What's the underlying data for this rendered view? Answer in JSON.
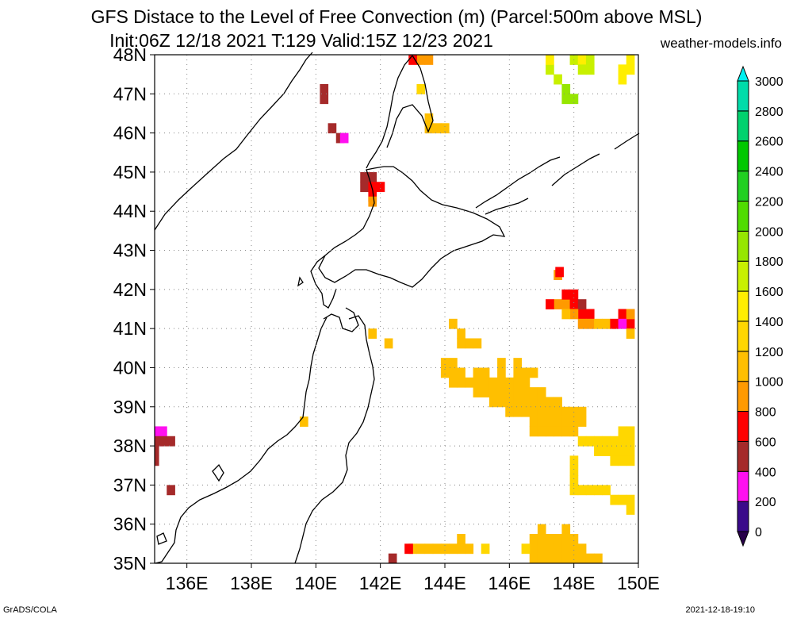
{
  "title_line1": "GFS Distace to the Level of Free Convection (m) (Parcel:500m above MSL)",
  "title_line2": "Init:06Z 12/18 2021 T:129 Valid:15Z 12/23 2021",
  "site": "weather-models.info",
  "footer_left": "GrADS/COLA",
  "footer_right": "2021-12-18-19:10",
  "map": {
    "lon_range": [
      135,
      150
    ],
    "lat_range": [
      35,
      48
    ],
    "lon_ticks": [
      {
        "value": 136,
        "label": "136E"
      },
      {
        "value": 138,
        "label": "138E"
      },
      {
        "value": 140,
        "label": "140E"
      },
      {
        "value": 142,
        "label": "142E"
      },
      {
        "value": 144,
        "label": "144E"
      },
      {
        "value": 146,
        "label": "146E"
      },
      {
        "value": 148,
        "label": "148E"
      },
      {
        "value": 150,
        "label": "150E"
      }
    ],
    "lat_ticks": [
      {
        "value": 35,
        "label": "35N"
      },
      {
        "value": 36,
        "label": "36N"
      },
      {
        "value": 37,
        "label": "37N"
      },
      {
        "value": 38,
        "label": "38N"
      },
      {
        "value": 39,
        "label": "39N"
      },
      {
        "value": 40,
        "label": "40N"
      },
      {
        "value": 41,
        "label": "41N"
      },
      {
        "value": 42,
        "label": "42N"
      },
      {
        "value": 43,
        "label": "43N"
      },
      {
        "value": 44,
        "label": "44N"
      },
      {
        "value": 45,
        "label": "45N"
      },
      {
        "value": 46,
        "label": "46N"
      },
      {
        "value": 47,
        "label": "47N"
      },
      {
        "value": 48,
        "label": "48N"
      }
    ],
    "grid": true
  },
  "colorbar": {
    "levels": [
      {
        "value": 0,
        "label": "0",
        "color": "#3a0a8a"
      },
      {
        "value": 200,
        "label": "200",
        "color": "#ff10f0"
      },
      {
        "value": 400,
        "label": "400",
        "color": "#a52a2a"
      },
      {
        "value": 600,
        "label": "600",
        "color": "#ff0000"
      },
      {
        "value": 800,
        "label": "800",
        "color": "#ff9a00"
      },
      {
        "value": 1000,
        "label": "1000",
        "color": "#ffbf00"
      },
      {
        "value": 1200,
        "label": "1200",
        "color": "#ffd700"
      },
      {
        "value": 1400,
        "label": "1400",
        "color": "#ffee00"
      },
      {
        "value": 1600,
        "label": "1600",
        "color": "#c8f000"
      },
      {
        "value": 1800,
        "label": "1800",
        "color": "#96e600"
      },
      {
        "value": 2000,
        "label": "2000",
        "color": "#50dc00"
      },
      {
        "value": 2200,
        "label": "2200",
        "color": "#22d022"
      },
      {
        "value": 2400,
        "label": "2400",
        "color": "#00c800"
      },
      {
        "value": 2600,
        "label": "2600",
        "color": "#00d26e"
      },
      {
        "value": 2800,
        "label": "2800",
        "color": "#00dcaa"
      },
      {
        "value": 3000,
        "label": "3000",
        "color": "#00e6d2"
      }
    ],
    "top_color": "#00f0f0",
    "bottom_color": "#28004a"
  },
  "cells": [
    {
      "lon": 143.25,
      "lat": 47.875,
      "c": "#ff9a00"
    },
    {
      "lon": 143.5,
      "lat": 47.875,
      "c": "#ff9a00"
    },
    {
      "lon": 143.0,
      "lat": 47.875,
      "c": "#ff0000"
    },
    {
      "lon": 143.25,
      "lat": 47.125,
      "c": "#ffd700"
    },
    {
      "lon": 143.5,
      "lat": 46.375,
      "c": "#ffbf00"
    },
    {
      "lon": 143.75,
      "lat": 46.125,
      "c": "#ffbf00"
    },
    {
      "lon": 144.0,
      "lat": 46.125,
      "c": "#ffbf00"
    },
    {
      "lon": 143.5,
      "lat": 46.125,
      "c": "#ffbf00"
    },
    {
      "lon": 147.25,
      "lat": 47.625,
      "c": "#c8f000"
    },
    {
      "lon": 147.5,
      "lat": 47.375,
      "c": "#c8f000"
    },
    {
      "lon": 147.75,
      "lat": 47.125,
      "c": "#96e600"
    },
    {
      "lon": 148.0,
      "lat": 46.875,
      "c": "#96e600"
    },
    {
      "lon": 147.75,
      "lat": 46.875,
      "c": "#96e600"
    },
    {
      "lon": 147.25,
      "lat": 47.875,
      "c": "#ffee00"
    },
    {
      "lon": 148.0,
      "lat": 47.875,
      "c": "#c8f000"
    },
    {
      "lon": 148.25,
      "lat": 47.875,
      "c": "#ffee00"
    },
    {
      "lon": 148.5,
      "lat": 47.875,
      "c": "#c8f000"
    },
    {
      "lon": 148.25,
      "lat": 47.625,
      "c": "#c8f000"
    },
    {
      "lon": 148.5,
      "lat": 47.625,
      "c": "#c8f000"
    },
    {
      "lon": 149.75,
      "lat": 47.875,
      "c": "#ffee00"
    },
    {
      "lon": 149.5,
      "lat": 47.625,
      "c": "#ffee00"
    },
    {
      "lon": 149.75,
      "lat": 47.625,
      "c": "#ffee00"
    },
    {
      "lon": 149.5,
      "lat": 47.375,
      "c": "#ffee00"
    },
    {
      "lon": 140.25,
      "lat": 47.125,
      "c": "#a52a2a"
    },
    {
      "lon": 140.25,
      "lat": 46.875,
      "c": "#a52a2a"
    },
    {
      "lon": 140.5,
      "lat": 46.125,
      "c": "#a52a2a"
    },
    {
      "lon": 140.75,
      "lat": 45.875,
      "c": "#a52a2a"
    },
    {
      "lon": 140.875,
      "lat": 45.875,
      "c": "#ff10f0"
    },
    {
      "lon": 141.5,
      "lat": 44.875,
      "c": "#a52a2a"
    },
    {
      "lon": 141.75,
      "lat": 44.875,
      "c": "#a52a2a"
    },
    {
      "lon": 141.5,
      "lat": 44.625,
      "c": "#a52a2a"
    },
    {
      "lon": 141.75,
      "lat": 44.625,
      "c": "#ff0000"
    },
    {
      "lon": 142.0,
      "lat": 44.625,
      "c": "#ff0000"
    },
    {
      "lon": 141.75,
      "lat": 44.375,
      "c": "#ff0000"
    },
    {
      "lon": 141.75,
      "lat": 44.25,
      "c": "#ff9a00"
    },
    {
      "lon": 147.5,
      "lat": 42.375,
      "c": "#ff9a00"
    },
    {
      "lon": 147.55,
      "lat": 42.45,
      "c": "#ff0000"
    },
    {
      "lon": 147.5,
      "lat": 41.625,
      "c": "#ff9a00"
    },
    {
      "lon": 147.75,
      "lat": 41.625,
      "c": "#ff9a00"
    },
    {
      "lon": 147.75,
      "lat": 41.875,
      "c": "#ff0000"
    },
    {
      "lon": 148.0,
      "lat": 41.875,
      "c": "#ff0000"
    },
    {
      "lon": 148.0,
      "lat": 41.625,
      "c": "#ff0000"
    },
    {
      "lon": 147.25,
      "lat": 41.625,
      "c": "#ff0000"
    },
    {
      "lon": 148.25,
      "lat": 41.375,
      "c": "#ff0000"
    },
    {
      "lon": 148.5,
      "lat": 41.375,
      "c": "#ff0000"
    },
    {
      "lon": 148.25,
      "lat": 41.625,
      "c": "#a52a2a"
    },
    {
      "lon": 148.0,
      "lat": 41.375,
      "c": "#ff9a00"
    },
    {
      "lon": 147.75,
      "lat": 41.375,
      "c": "#ffbf00"
    },
    {
      "lon": 148.25,
      "lat": 41.125,
      "c": "#ff9a00"
    },
    {
      "lon": 148.5,
      "lat": 41.125,
      "c": "#ff9a00"
    },
    {
      "lon": 148.75,
      "lat": 41.125,
      "c": "#ffbf00"
    },
    {
      "lon": 149.0,
      "lat": 41.125,
      "c": "#ffbf00"
    },
    {
      "lon": 149.25,
      "lat": 41.125,
      "c": "#ff0000"
    },
    {
      "lon": 149.5,
      "lat": 41.375,
      "c": "#ff0000"
    },
    {
      "lon": 149.75,
      "lat": 41.375,
      "c": "#ff0000"
    },
    {
      "lon": 149.75,
      "lat": 41.125,
      "c": "#ff0000"
    },
    {
      "lon": 149.5,
      "lat": 41.125,
      "c": "#ff10f0"
    },
    {
      "lon": 149.75,
      "lat": 41.375,
      "c": "#ff9a00"
    },
    {
      "lon": 149.75,
      "lat": 40.875,
      "c": "#ffbf00"
    },
    {
      "lon": 144.25,
      "lat": 41.125,
      "c": "#ffbf00"
    },
    {
      "lon": 144.5,
      "lat": 40.875,
      "c": "#ffbf00"
    },
    {
      "lon": 144.5,
      "lat": 40.625,
      "c": "#ffbf00"
    },
    {
      "lon": 144.75,
      "lat": 40.625,
      "c": "#ffbf00"
    },
    {
      "lon": 145.0,
      "lat": 40.625,
      "c": "#ffbf00"
    },
    {
      "lon": 141.75,
      "lat": 40.875,
      "c": "#ffbf00"
    },
    {
      "lon": 142.25,
      "lat": 40.625,
      "c": "#ffbf00"
    },
    {
      "lon": 144.0,
      "lat": 40.125,
      "c": "#ffbf00"
    },
    {
      "lon": 144.25,
      "lat": 40.125,
      "c": "#ffbf00"
    },
    {
      "lon": 144.0,
      "lat": 39.875,
      "c": "#ffbf00"
    },
    {
      "lon": 144.25,
      "lat": 39.875,
      "c": "#ffbf00"
    },
    {
      "lon": 144.5,
      "lat": 39.875,
      "c": "#ffbf00"
    },
    {
      "lon": 145.75,
      "lat": 40.125,
      "c": "#ffbf00"
    },
    {
      "lon": 146.25,
      "lat": 40.125,
      "c": "#ffbf00"
    },
    {
      "lon": 144.25,
      "lat": 39.625,
      "c": "#ffbf00"
    },
    {
      "lon": 144.5,
      "lat": 39.625,
      "c": "#ffbf00"
    },
    {
      "lon": 144.75,
      "lat": 39.625,
      "c": "#ffbf00"
    },
    {
      "lon": 145.0,
      "lat": 39.625,
      "c": "#ffbf00"
    },
    {
      "lon": 145.25,
      "lat": 39.625,
      "c": "#ffbf00"
    },
    {
      "lon": 145.5,
      "lat": 39.625,
      "c": "#ffbf00"
    },
    {
      "lon": 145.75,
      "lat": 39.625,
      "c": "#ffbf00"
    },
    {
      "lon": 146.0,
      "lat": 39.625,
      "c": "#ffbf00"
    },
    {
      "lon": 146.25,
      "lat": 39.625,
      "c": "#ffbf00"
    },
    {
      "lon": 146.5,
      "lat": 39.625,
      "c": "#ffbf00"
    },
    {
      "lon": 146.25,
      "lat": 39.875,
      "c": "#ffbf00"
    },
    {
      "lon": 146.5,
      "lat": 39.875,
      "c": "#ffbf00"
    },
    {
      "lon": 146.75,
      "lat": 39.875,
      "c": "#ffbf00"
    },
    {
      "lon": 145.75,
      "lat": 39.875,
      "c": "#ffbf00"
    },
    {
      "lon": 145.0,
      "lat": 39.875,
      "c": "#ffbf00"
    },
    {
      "lon": 145.25,
      "lat": 39.875,
      "c": "#ffbf00"
    },
    {
      "lon": 145.0,
      "lat": 39.375,
      "c": "#ffbf00"
    },
    {
      "lon": 145.25,
      "lat": 39.375,
      "c": "#ffbf00"
    },
    {
      "lon": 145.5,
      "lat": 39.375,
      "c": "#ffbf00"
    },
    {
      "lon": 145.75,
      "lat": 39.375,
      "c": "#ffbf00"
    },
    {
      "lon": 146.0,
      "lat": 39.375,
      "c": "#ffbf00"
    },
    {
      "lon": 146.25,
      "lat": 39.375,
      "c": "#ffbf00"
    },
    {
      "lon": 146.5,
      "lat": 39.375,
      "c": "#ffbf00"
    },
    {
      "lon": 146.75,
      "lat": 39.375,
      "c": "#ffbf00"
    },
    {
      "lon": 147.0,
      "lat": 39.375,
      "c": "#ffbf00"
    },
    {
      "lon": 145.5,
      "lat": 39.125,
      "c": "#ffbf00"
    },
    {
      "lon": 145.75,
      "lat": 39.125,
      "c": "#ffbf00"
    },
    {
      "lon": 146.0,
      "lat": 39.125,
      "c": "#ffbf00"
    },
    {
      "lon": 146.25,
      "lat": 39.125,
      "c": "#ffbf00"
    },
    {
      "lon": 146.5,
      "lat": 39.125,
      "c": "#ffbf00"
    },
    {
      "lon": 146.75,
      "lat": 39.125,
      "c": "#ffbf00"
    },
    {
      "lon": 147.0,
      "lat": 39.125,
      "c": "#ffbf00"
    },
    {
      "lon": 147.25,
      "lat": 39.125,
      "c": "#ffbf00"
    },
    {
      "lon": 147.5,
      "lat": 39.125,
      "c": "#ffbf00"
    },
    {
      "lon": 146.0,
      "lat": 38.875,
      "c": "#ffbf00"
    },
    {
      "lon": 146.25,
      "lat": 38.875,
      "c": "#ffbf00"
    },
    {
      "lon": 146.5,
      "lat": 38.875,
      "c": "#ffbf00"
    },
    {
      "lon": 146.75,
      "lat": 38.875,
      "c": "#ffbf00"
    },
    {
      "lon": 147.0,
      "lat": 38.875,
      "c": "#ffbf00"
    },
    {
      "lon": 147.25,
      "lat": 38.875,
      "c": "#ffbf00"
    },
    {
      "lon": 147.5,
      "lat": 38.875,
      "c": "#ffbf00"
    },
    {
      "lon": 147.75,
      "lat": 38.875,
      "c": "#ffbf00"
    },
    {
      "lon": 148.0,
      "lat": 38.875,
      "c": "#ffbf00"
    },
    {
      "lon": 148.25,
      "lat": 38.875,
      "c": "#ffbf00"
    },
    {
      "lon": 146.75,
      "lat": 38.625,
      "c": "#ffbf00"
    },
    {
      "lon": 147.0,
      "lat": 38.625,
      "c": "#ffbf00"
    },
    {
      "lon": 147.25,
      "lat": 38.625,
      "c": "#ffbf00"
    },
    {
      "lon": 147.5,
      "lat": 38.625,
      "c": "#ffbf00"
    },
    {
      "lon": 147.75,
      "lat": 38.625,
      "c": "#ffbf00"
    },
    {
      "lon": 148.0,
      "lat": 38.625,
      "c": "#ffbf00"
    },
    {
      "lon": 148.25,
      "lat": 38.625,
      "c": "#ffbf00"
    },
    {
      "lon": 146.75,
      "lat": 38.375,
      "c": "#ffbf00"
    },
    {
      "lon": 147.0,
      "lat": 38.375,
      "c": "#ffbf00"
    },
    {
      "lon": 147.25,
      "lat": 38.375,
      "c": "#ffbf00"
    },
    {
      "lon": 147.5,
      "lat": 38.375,
      "c": "#ffbf00"
    },
    {
      "lon": 147.75,
      "lat": 38.375,
      "c": "#ffbf00"
    },
    {
      "lon": 148.0,
      "lat": 38.375,
      "c": "#ffbf00"
    },
    {
      "lon": 148.25,
      "lat": 38.125,
      "c": "#ffd700"
    },
    {
      "lon": 148.5,
      "lat": 38.125,
      "c": "#ffd700"
    },
    {
      "lon": 148.75,
      "lat": 38.125,
      "c": "#ffd700"
    },
    {
      "lon": 149.0,
      "lat": 38.125,
      "c": "#ffd700"
    },
    {
      "lon": 149.25,
      "lat": 38.125,
      "c": "#ffd700"
    },
    {
      "lon": 149.5,
      "lat": 38.125,
      "c": "#ffd700"
    },
    {
      "lon": 149.75,
      "lat": 38.125,
      "c": "#ffd700"
    },
    {
      "lon": 149.75,
      "lat": 38.375,
      "c": "#ffd700"
    },
    {
      "lon": 149.5,
      "lat": 38.375,
      "c": "#ffd700"
    },
    {
      "lon": 148.75,
      "lat": 37.875,
      "c": "#ffd700"
    },
    {
      "lon": 149.0,
      "lat": 37.875,
      "c": "#ffd700"
    },
    {
      "lon": 149.25,
      "lat": 37.875,
      "c": "#ffd700"
    },
    {
      "lon": 149.5,
      "lat": 37.875,
      "c": "#ffd700"
    },
    {
      "lon": 149.75,
      "lat": 37.875,
      "c": "#ffd700"
    },
    {
      "lon": 149.25,
      "lat": 37.625,
      "c": "#ffd700"
    },
    {
      "lon": 149.5,
      "lat": 37.625,
      "c": "#ffd700"
    },
    {
      "lon": 149.75,
      "lat": 37.625,
      "c": "#ffd700"
    },
    {
      "lon": 148.0,
      "lat": 37.625,
      "c": "#ffd700"
    },
    {
      "lon": 148.0,
      "lat": 37.375,
      "c": "#ffd700"
    },
    {
      "lon": 148.0,
      "lat": 37.125,
      "c": "#ffd700"
    },
    {
      "lon": 148.0,
      "lat": 36.875,
      "c": "#ffd700"
    },
    {
      "lon": 148.25,
      "lat": 36.875,
      "c": "#ffd700"
    },
    {
      "lon": 148.5,
      "lat": 36.875,
      "c": "#ffd700"
    },
    {
      "lon": 148.75,
      "lat": 36.875,
      "c": "#ffd700"
    },
    {
      "lon": 149.0,
      "lat": 36.875,
      "c": "#ffd700"
    },
    {
      "lon": 149.25,
      "lat": 36.625,
      "c": "#ffd700"
    },
    {
      "lon": 149.5,
      "lat": 36.625,
      "c": "#ffd700"
    },
    {
      "lon": 149.75,
      "lat": 36.625,
      "c": "#ffd700"
    },
    {
      "lon": 149.75,
      "lat": 36.375,
      "c": "#ffd700"
    },
    {
      "lon": 139.625,
      "lat": 38.625,
      "c": "#ffbf00"
    },
    {
      "lon": 135.25,
      "lat": 38.375,
      "c": "#ff10f0"
    },
    {
      "lon": 135.0,
      "lat": 38.375,
      "c": "#ff10f0"
    },
    {
      "lon": 135.125,
      "lat": 38.125,
      "c": "#ff10f0"
    },
    {
      "lon": 135.0,
      "lat": 38.125,
      "c": "#a52a2a"
    },
    {
      "lon": 135.25,
      "lat": 38.125,
      "c": "#a52a2a"
    },
    {
      "lon": 135.5,
      "lat": 38.125,
      "c": "#a52a2a"
    },
    {
      "lon": 135.0,
      "lat": 37.875,
      "c": "#a52a2a"
    },
    {
      "lon": 135.0,
      "lat": 37.625,
      "c": "#a52a2a"
    },
    {
      "lon": 135.5,
      "lat": 36.875,
      "c": "#a52a2a"
    },
    {
      "lon": 147.0,
      "lat": 35.875,
      "c": "#ffbf00"
    },
    {
      "lon": 147.75,
      "lat": 35.875,
      "c": "#ffbf00"
    },
    {
      "lon": 146.75,
      "lat": 35.625,
      "c": "#ffbf00"
    },
    {
      "lon": 147.0,
      "lat": 35.625,
      "c": "#ffbf00"
    },
    {
      "lon": 147.25,
      "lat": 35.625,
      "c": "#ffbf00"
    },
    {
      "lon": 147.5,
      "lat": 35.625,
      "c": "#ffbf00"
    },
    {
      "lon": 147.75,
      "lat": 35.625,
      "c": "#ffbf00"
    },
    {
      "lon": 148.0,
      "lat": 35.625,
      "c": "#ffbf00"
    },
    {
      "lon": 146.75,
      "lat": 35.375,
      "c": "#ffbf00"
    },
    {
      "lon": 147.0,
      "lat": 35.375,
      "c": "#ffbf00"
    },
    {
      "lon": 147.25,
      "lat": 35.375,
      "c": "#ffbf00"
    },
    {
      "lon": 147.5,
      "lat": 35.375,
      "c": "#ffbf00"
    },
    {
      "lon": 147.75,
      "lat": 35.375,
      "c": "#ffbf00"
    },
    {
      "lon": 148.0,
      "lat": 35.375,
      "c": "#ffbf00"
    },
    {
      "lon": 148.25,
      "lat": 35.375,
      "c": "#ffbf00"
    },
    {
      "lon": 146.75,
      "lat": 35.125,
      "c": "#ffbf00"
    },
    {
      "lon": 147.0,
      "lat": 35.125,
      "c": "#ffbf00"
    },
    {
      "lon": 147.25,
      "lat": 35.125,
      "c": "#ffbf00"
    },
    {
      "lon": 147.5,
      "lat": 35.125,
      "c": "#ffbf00"
    },
    {
      "lon": 147.75,
      "lat": 35.125,
      "c": "#ffbf00"
    },
    {
      "lon": 148.0,
      "lat": 35.125,
      "c": "#ffbf00"
    },
    {
      "lon": 148.25,
      "lat": 35.125,
      "c": "#ffbf00"
    },
    {
      "lon": 148.5,
      "lat": 35.125,
      "c": "#ffbf00"
    },
    {
      "lon": 148.75,
      "lat": 35.125,
      "c": "#ffbf00"
    },
    {
      "lon": 146.5,
      "lat": 35.375,
      "c": "#ffd700"
    },
    {
      "lon": 145.25,
      "lat": 35.375,
      "c": "#ffd700"
    },
    {
      "lon": 143.0,
      "lat": 35.375,
      "c": "#ffbf00"
    },
    {
      "lon": 143.25,
      "lat": 35.375,
      "c": "#ffbf00"
    },
    {
      "lon": 143.5,
      "lat": 35.375,
      "c": "#ffbf00"
    },
    {
      "lon": 143.75,
      "lat": 35.375,
      "c": "#ffbf00"
    },
    {
      "lon": 144.0,
      "lat": 35.375,
      "c": "#ffbf00"
    },
    {
      "lon": 144.25,
      "lat": 35.375,
      "c": "#ffbf00"
    },
    {
      "lon": 144.5,
      "lat": 35.375,
      "c": "#ffbf00"
    },
    {
      "lon": 144.75,
      "lat": 35.375,
      "c": "#ffbf00"
    },
    {
      "lon": 144.5,
      "lat": 35.625,
      "c": "#ffbf00"
    },
    {
      "lon": 142.875,
      "lat": 35.375,
      "c": "#ff0000"
    },
    {
      "lon": 142.375,
      "lat": 35.125,
      "c": "#a52a2a"
    }
  ]
}
